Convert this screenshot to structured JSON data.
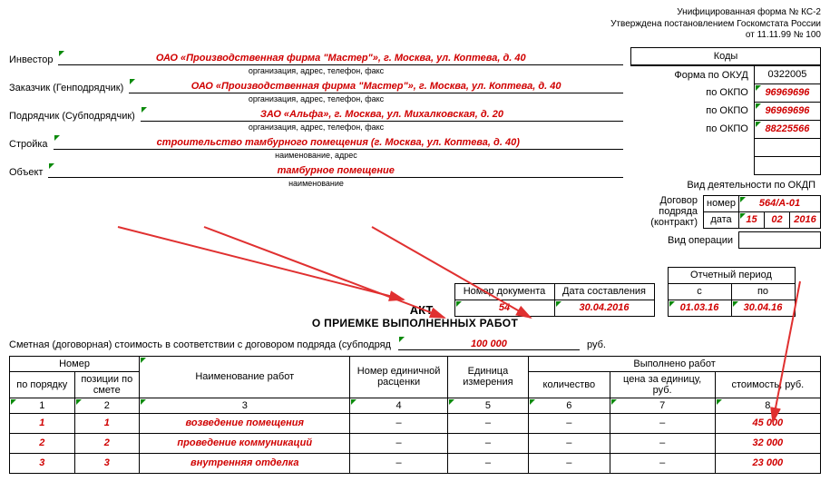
{
  "header": {
    "line1": "Унифицированная форма № КС-2",
    "line2": "Утверждена постановлением Госкомстата России",
    "line3": "от 11.11.99 № 100"
  },
  "codes": {
    "heading": "Коды",
    "form_okud_label": "Форма по ОКУД",
    "form_okud": "0322005",
    "okpo_label": "по ОКПО",
    "investor_okpo": "96969696",
    "customer_okpo": "96969696",
    "contractor_okpo": "88225566",
    "okdp_label": "Вид деятельности по ОКДП"
  },
  "parties": {
    "investor_label": "Инвестор",
    "investor": "ОАО «Производственная фирма \"Мастер\"», г. Москва, ул. Коптева, д. 40",
    "sub_org": "организация, адрес, телефон, факс",
    "customer_label": "Заказчик (Генподрядчик)",
    "customer": "ОАО «Производственная фирма \"Мастер\"», г. Москва, ул. Коптева, д. 40",
    "contractor_label": "Подрядчик (Субподрядчик)",
    "contractor": "ЗАО «Альфа», г. Москва, ул. Михалковская, д. 20",
    "project_label": "Стройка",
    "project": "строительство тамбурного помещения (г. Москва, ул. Коптева, д. 40)",
    "project_sub": "наименование, адрес",
    "object_label": "Объект",
    "object": "тамбурное помещение",
    "object_sub": "наименование"
  },
  "contract": {
    "label": "Договор подряда (контракт)",
    "num_label": "номер",
    "num": "564/А-01",
    "date_label": "дата",
    "d": "15",
    "m": "02",
    "y": "2016",
    "op_label": "Вид операции"
  },
  "doc": {
    "num_label": "Номер документа",
    "num": "54",
    "date_label": "Дата составления",
    "date": "30.04.2016",
    "period_label": "Отчетный период",
    "from_label": "с",
    "to_label": "по",
    "from": "01.03.16",
    "to": "30.04.16",
    "act": "АКТ",
    "act_sub": "О ПРИЕМКЕ ВЫПОЛНЕННЫХ РАБОТ"
  },
  "cost": {
    "prefix": "Сметная (договорная) стоимость в соответствии с договором подряда (субподряд",
    "value": "100 000",
    "suffix": "руб."
  },
  "table": {
    "h_number": "Номер",
    "h_order": "по порядку",
    "h_pos": "позиции по смете",
    "h_name": "Наименование работ",
    "h_unitnum": "Номер единичной расценки",
    "h_unit": "Единица измерения",
    "h_done": "Выполнено работ",
    "h_qty": "количество",
    "h_price": "цена за единицу, руб.",
    "h_cost": "стоимость, руб.",
    "idx": [
      "1",
      "2",
      "3",
      "4",
      "5",
      "6",
      "7",
      "8"
    ],
    "rows": [
      {
        "n": "1",
        "pos": "1",
        "name": "возведение помещения",
        "c4": "–",
        "c5": "–",
        "c6": "–",
        "c7": "–",
        "cost": "45 000"
      },
      {
        "n": "2",
        "pos": "2",
        "name": "проведение коммуникаций",
        "c4": "–",
        "c5": "–",
        "c6": "–",
        "c7": "–",
        "cost": "32 000"
      },
      {
        "n": "3",
        "pos": "3",
        "name": "внутренняя отделка",
        "c4": "–",
        "c5": "–",
        "c6": "–",
        "c7": "–",
        "cost": "23 000"
      }
    ]
  },
  "style": {
    "red": "#d00000",
    "green_tick": "#0b8a0b",
    "arrow": "#e03030"
  }
}
